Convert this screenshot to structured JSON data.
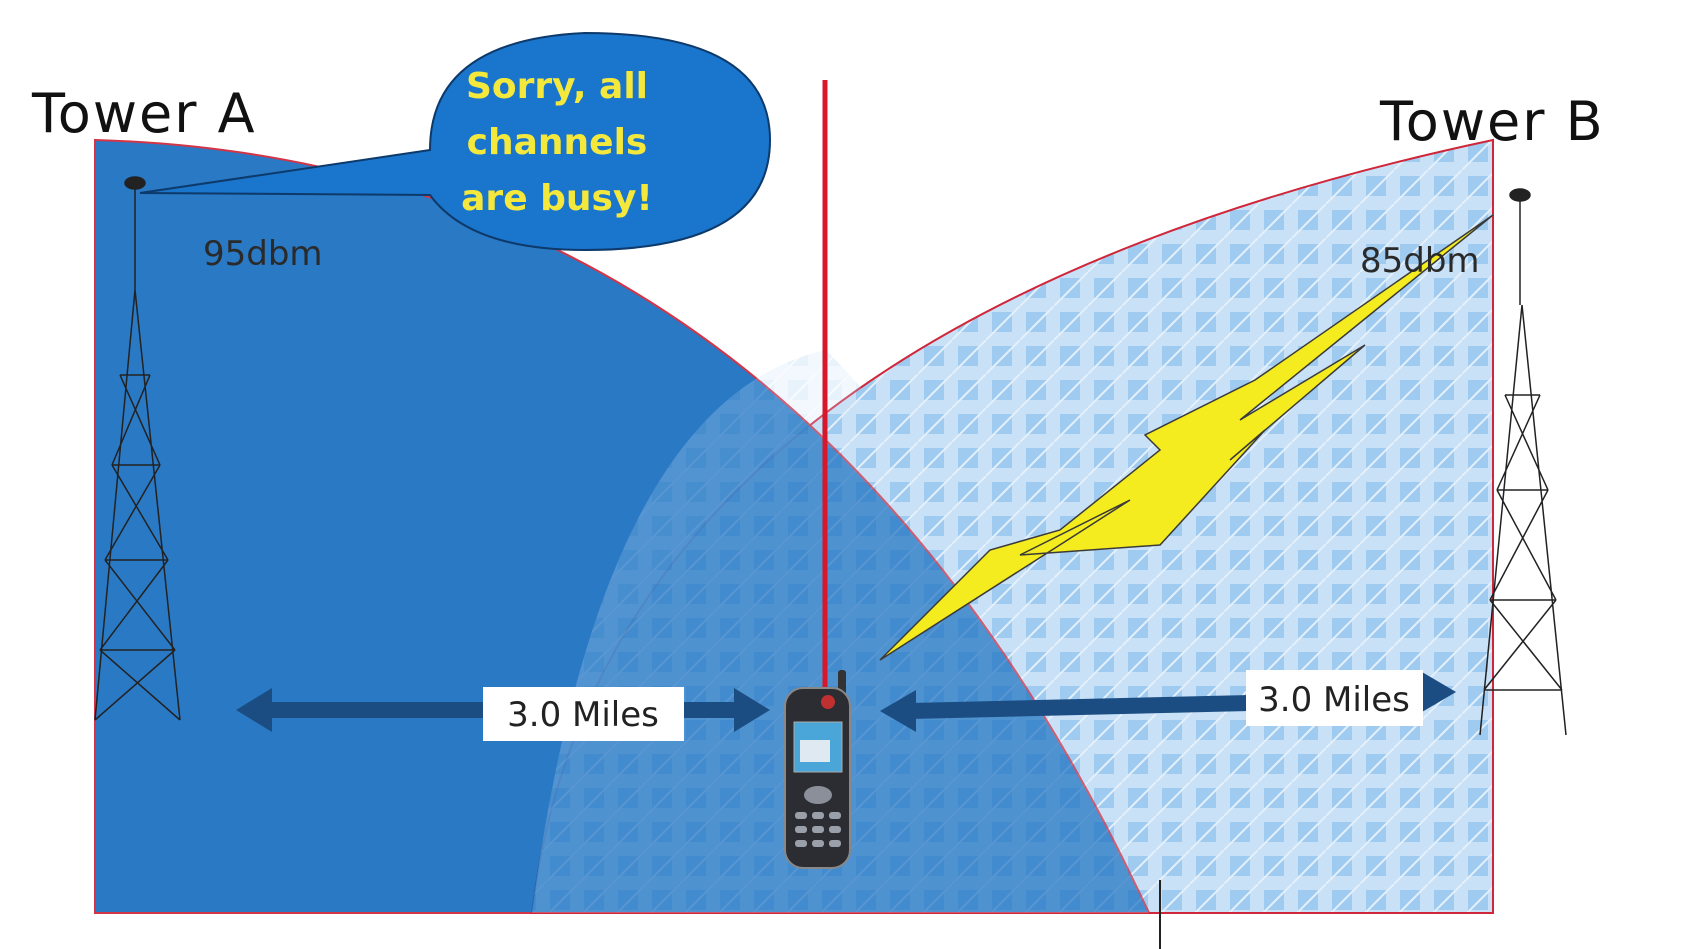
{
  "towers": [
    {
      "label": "Tower A",
      "signal": "95dbm"
    },
    {
      "label": "Tower B",
      "signal": "85dbm"
    }
  ],
  "speech_bubble": {
    "lines": [
      "Sorry, all",
      "channels",
      "are busy!"
    ]
  },
  "distances": [
    "3.0 Miles",
    "3.0 Miles"
  ]
}
